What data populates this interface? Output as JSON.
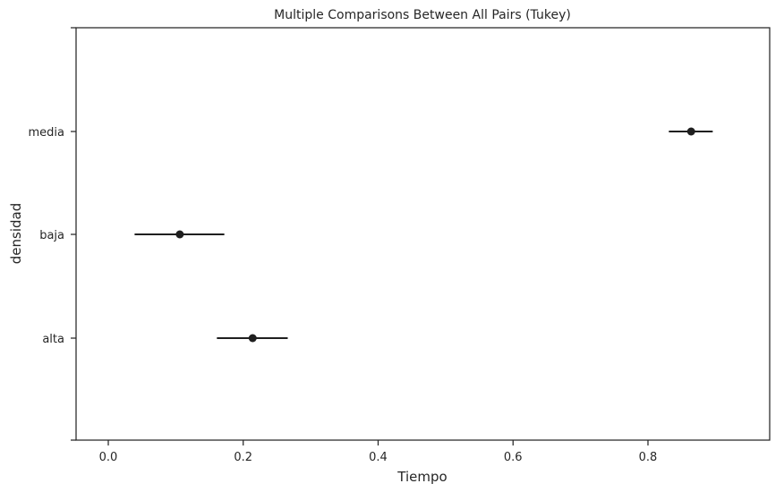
{
  "chart_data": {
    "type": "scatter",
    "title": "Multiple Comparisons Between All Pairs (Tukey)",
    "xlabel": "Tiempo",
    "ylabel": "densidad",
    "xlim": [
      -0.05,
      0.98
    ],
    "x_ticks": [
      {
        "value": 0.0,
        "label": "0.0"
      },
      {
        "value": 0.2,
        "label": "0.2"
      },
      {
        "value": 0.4,
        "label": "0.4"
      },
      {
        "value": 0.6,
        "label": "0.6"
      },
      {
        "value": 0.8,
        "label": "0.8"
      }
    ],
    "categories": [
      "media",
      "baja",
      "alta"
    ],
    "series": [
      {
        "mean": 0.864,
        "lower": 0.831,
        "upper": 0.896
      },
      {
        "mean": 0.106,
        "lower": 0.039,
        "upper": 0.172
      },
      {
        "mean": 0.214,
        "lower": 0.161,
        "upper": 0.266
      }
    ],
    "grid": false,
    "colors": {
      "marker": "#1f1f1f",
      "axis": "#262626",
      "background": "#ffffff"
    }
  }
}
